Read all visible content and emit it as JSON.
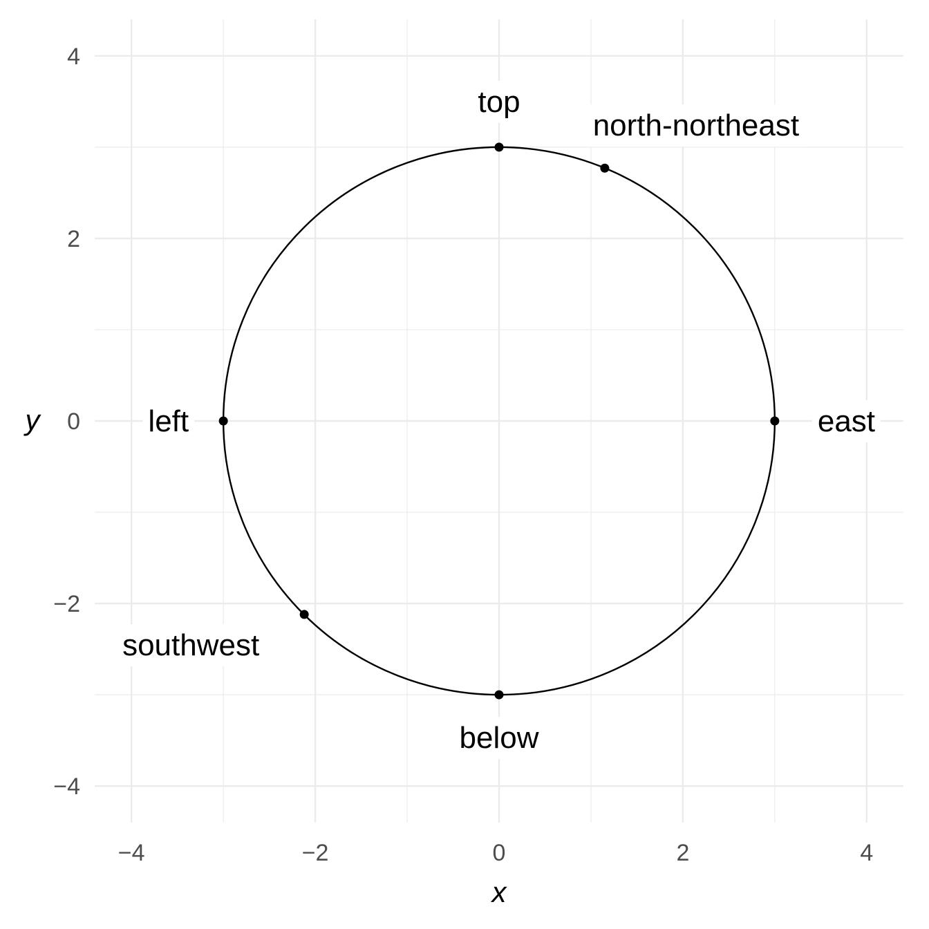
{
  "chart_data": {
    "type": "scatter",
    "xlabel": "x",
    "ylabel": "y",
    "xlim": [
      -4.4,
      4.4
    ],
    "ylim": [
      -4.4,
      4.4
    ],
    "x_ticks": [
      -4,
      -2,
      0,
      2,
      4
    ],
    "y_ticks": [
      -4,
      -2,
      0,
      2,
      4
    ],
    "x_tick_labels": [
      "−4",
      "−2",
      "0",
      "2",
      "4"
    ],
    "y_tick_labels": [
      "−4",
      "−2",
      "0",
      "2",
      "4"
    ],
    "grid": true,
    "circle": {
      "center": [
        0,
        0
      ],
      "radius": 3
    },
    "points": [
      {
        "x": 0,
        "y": 3,
        "label": "top",
        "label_position": "above"
      },
      {
        "x": 1.15,
        "y": 2.77,
        "label": "north-northeast",
        "label_position": "above-right"
      },
      {
        "x": 3,
        "y": 0,
        "label": "east",
        "label_position": "right"
      },
      {
        "x": -3,
        "y": 0,
        "label": "left",
        "label_position": "left"
      },
      {
        "x": -2.12,
        "y": -2.12,
        "label": "southwest",
        "label_position": "below-left"
      },
      {
        "x": 0,
        "y": -3,
        "label": "below",
        "label_position": "below"
      }
    ],
    "colors": {
      "grid": "#ebebeb",
      "circle": "#000000",
      "points": "#000000",
      "tick_text": "#4d4d4d"
    }
  }
}
